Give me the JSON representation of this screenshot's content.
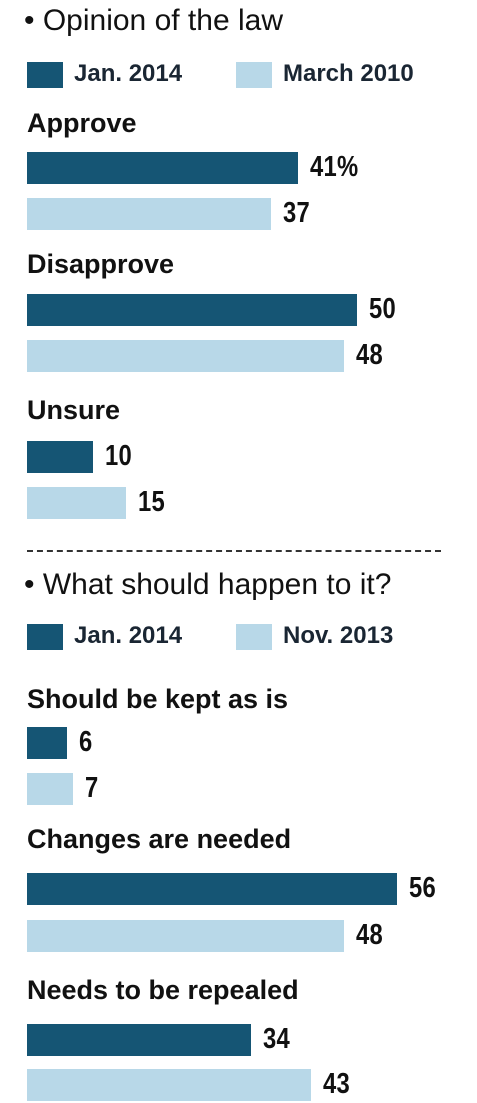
{
  "colors": {
    "series1": "#155574",
    "series2": "#b8d8e8"
  },
  "chart_data": [
    {
      "type": "bar",
      "title": "• Opinion of the law",
      "categories": [
        "Approve",
        "Disapprove",
        "Unsure"
      ],
      "series": [
        {
          "name": "Jan. 2014",
          "values": [
            41,
            50,
            10
          ],
          "labels": [
            "41%",
            "50",
            "10"
          ]
        },
        {
          "name": "March 2010",
          "values": [
            37,
            48,
            15
          ],
          "labels": [
            "37",
            "48",
            "15"
          ]
        }
      ]
    },
    {
      "type": "bar",
      "title": "• What should happen to it?",
      "categories": [
        "Should be kept as is",
        "Changes are needed",
        "Needs to be repealed"
      ],
      "series": [
        {
          "name": "Jan. 2014",
          "values": [
            6,
            56,
            34
          ],
          "labels": [
            "6",
            "56",
            "34"
          ]
        },
        {
          "name": "Nov. 2013",
          "values": [
            7,
            48,
            43
          ],
          "labels": [
            "7",
            "48",
            "43"
          ]
        }
      ]
    }
  ]
}
